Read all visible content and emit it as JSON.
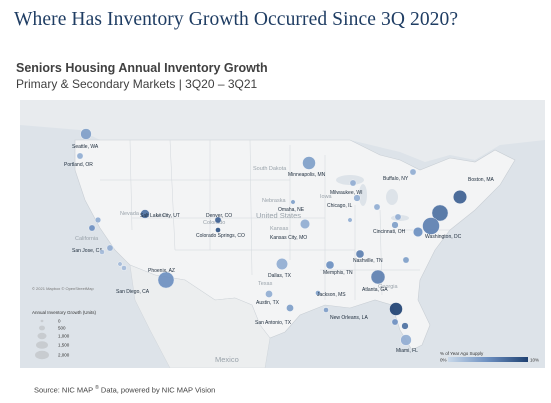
{
  "title": "Where Has Inventory Growth Occurred Since 3Q 2020?",
  "subtitle": "Seniors Housing Annual Inventory Growth",
  "subtitle2": "Primary & Secondary Markets | 3Q20 – 3Q21",
  "source": {
    "text_before": "Source: NIC MAP",
    "registered": "®",
    "text_after": " Data, powered by NIC MAP Vision"
  },
  "map": {
    "attribution": "© 2021 Mapbox © OpenStreetMap",
    "regions": {
      "us": "United States",
      "mexico": "Mexico",
      "south_dakota": "South Dakota",
      "nebraska": "Nebraska",
      "kansas": "Kansas",
      "texas": "Texas",
      "california": "California",
      "nevada": "Nevada",
      "utah": "Utah",
      "colorado": "Colorado",
      "iowa": "Iowa",
      "georgia": "Georgia"
    },
    "colors": {
      "low": "#c9d9ea",
      "mid": "#6c8fc0",
      "high": "#1f4172"
    }
  },
  "markets": [
    {
      "name": "Seattle, WA",
      "growth_pct": 4,
      "units": 900
    },
    {
      "name": "Portland, OR",
      "growth_pct": 3,
      "units": 300
    },
    {
      "name": "San Jose, CA",
      "growth_pct": 3,
      "units": 250
    },
    {
      "name": "",
      "growth_pct": 5,
      "units": 300
    },
    {
      "name": "",
      "growth_pct": 2,
      "units": 200
    },
    {
      "name": "",
      "growth_pct": 3,
      "units": 300
    },
    {
      "name": "San Diego, CA",
      "growth_pct": 2,
      "units": 200
    },
    {
      "name": "",
      "growth_pct": 2,
      "units": 150
    },
    {
      "name": "Phoenix, AZ",
      "growth_pct": 5,
      "units": 2000
    },
    {
      "name": "Salt Lake City, UT",
      "growth_pct": 7,
      "units": 600
    },
    {
      "name": "Denver, CO",
      "growth_pct": 8,
      "units": 300
    },
    {
      "name": "Colorado Springs, CO",
      "growth_pct": 9,
      "units": 200
    },
    {
      "name": "Minneapolis, MN",
      "growth_pct": 4,
      "units": 1300
    },
    {
      "name": "Omaha, NE",
      "growth_pct": 4,
      "units": 150
    },
    {
      "name": "Kansas City, MO",
      "growth_pct": 3,
      "units": 700
    },
    {
      "name": "Dallas, TX",
      "growth_pct": 3,
      "units": 1000
    },
    {
      "name": "Austin, TX",
      "growth_pct": 3,
      "units": 400
    },
    {
      "name": "San Antonio, TX",
      "growth_pct": 4,
      "units": 400
    },
    {
      "name": "",
      "growth_pct": 3,
      "units": 150
    },
    {
      "name": "Chicago, IL",
      "growth_pct": 3,
      "units": 350
    },
    {
      "name": "Milwaukee, WI",
      "growth_pct": 3,
      "units": 300
    },
    {
      "name": "",
      "growth_pct": 3,
      "units": 300
    },
    {
      "name": "Cincinnati, OH",
      "growth_pct": 4,
      "units": 350
    },
    {
      "name": "Buffalo, NY",
      "growth_pct": 3,
      "units": 300
    },
    {
      "name": "Boston, MA",
      "growth_pct": 8,
      "units": 1400
    },
    {
      "name": "",
      "growth_pct": 7,
      "units": 2000
    },
    {
      "name": "Washington, DC",
      "growth_pct": 6,
      "units": 2200
    },
    {
      "name": "",
      "growth_pct": 5,
      "units": 700
    },
    {
      "name": "Nashville, TN",
      "growth_pct": 6,
      "units": 500
    },
    {
      "name": "Memphis, TN",
      "growth_pct": 5,
      "units": 500
    },
    {
      "name": "Atlanta, GA",
      "growth_pct": 6,
      "units": 1500
    },
    {
      "name": "",
      "growth_pct": 4,
      "units": 300
    },
    {
      "name": "",
      "growth_pct": 3,
      "units": 300
    },
    {
      "name": "Jackson, MS",
      "growth_pct": 4,
      "units": 200
    },
    {
      "name": "New Orleans, LA",
      "growth_pct": 4,
      "units": 200
    },
    {
      "name": "",
      "growth_pct": 10,
      "units": 1300
    },
    {
      "name": "",
      "growth_pct": 5,
      "units": 300
    },
    {
      "name": "",
      "growth_pct": 7,
      "units": 350
    },
    {
      "name": "Miami, FL",
      "growth_pct": 3,
      "units": 900
    }
  ],
  "size_legend": {
    "title": "Annual Inventory Growth (Units)",
    "entries": [
      "0",
      "500",
      "1,000",
      "1,500",
      "2,000"
    ]
  },
  "color_legend": {
    "title": "% of Year Ago Supply",
    "min_label": "0%",
    "max_label": "10%"
  }
}
